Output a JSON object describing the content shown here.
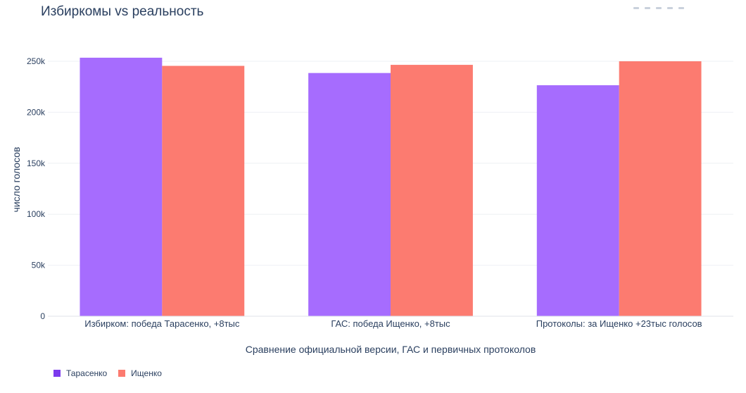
{
  "chart_data": {
    "type": "bar",
    "title": "Избиркомы vs реальность",
    "xlabel": "Сравнение официальной версии, ГАС и первичных протоколов",
    "ylabel": "число голосов",
    "categories": [
      "Избирком: победа Тарасенко, +8тыс",
      "ГАС: победа Ищенко, +8тыс",
      "Протоколы: за Ищенко +23тыс голосов"
    ],
    "series": [
      {
        "name": "Тарасенко",
        "color": "#a66cfe",
        "values": [
          253500,
          238500,
          226500
        ]
      },
      {
        "name": "Ищенко",
        "color": "#fc7b70",
        "values": [
          245500,
          246500,
          250000
        ]
      }
    ],
    "ylim": [
      0,
      262000
    ],
    "yticks": [
      0,
      50000,
      100000,
      150000,
      200000,
      250000
    ],
    "ytick_labels": [
      "0",
      "50k",
      "100k",
      "150k",
      "200k",
      "250k"
    ],
    "grid": true,
    "legend_position": "bottom-left"
  }
}
